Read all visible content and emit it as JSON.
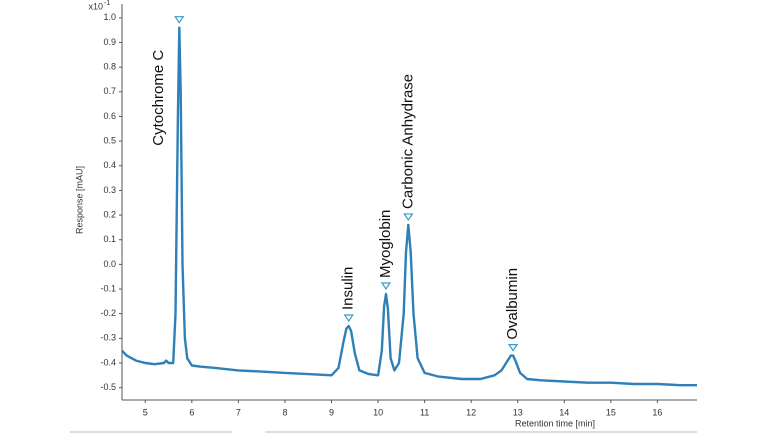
{
  "chart_data": {
    "type": "line",
    "y_axis_label": "Response [mAU]",
    "x_axis_label": "Retention time [min]",
    "y_multiplier": {
      "base": "x10",
      "exponent": "-1"
    },
    "xlim": [
      4.5,
      16.85
    ],
    "ylim": [
      -0.55,
      1.05
    ],
    "xticks": [
      5,
      6,
      7,
      8,
      9,
      10,
      11,
      12,
      13,
      14,
      15,
      16
    ],
    "yticks": [
      {
        "value": 1,
        "label": "1.0"
      },
      0.9,
      0.8,
      0.7,
      0.6,
      0.5,
      0.4,
      0.3,
      0.2,
      0.1,
      {
        "value": 0,
        "label": "0.0"
      },
      -0.1,
      -0.2,
      -0.3,
      -0.4,
      -0.5
    ],
    "x": [
      4.5,
      4.6,
      4.8,
      5.0,
      5.2,
      5.4,
      5.45,
      5.5,
      5.6,
      5.65,
      5.7,
      5.73,
      5.76,
      5.8,
      5.85,
      5.9,
      6.0,
      6.2,
      6.5,
      7.0,
      7.5,
      8.0,
      8.5,
      9.0,
      9.15,
      9.25,
      9.32,
      9.37,
      9.42,
      9.5,
      9.6,
      9.8,
      10.0,
      10.08,
      10.13,
      10.17,
      10.21,
      10.27,
      10.35,
      10.45,
      10.55,
      10.6,
      10.65,
      10.7,
      10.76,
      10.85,
      11.0,
      11.3,
      11.8,
      12.2,
      12.5,
      12.65,
      12.75,
      12.85,
      12.9,
      12.95,
      13.05,
      13.2,
      13.5,
      14.0,
      14.5,
      15.0,
      15.5,
      16.0,
      16.5,
      16.85
    ],
    "series": [
      {
        "color": "#2f7fb8",
        "values": [
          -0.35,
          -0.37,
          -0.39,
          -0.4,
          -0.405,
          -0.4,
          -0.39,
          -0.4,
          -0.4,
          -0.2,
          0.6,
          0.96,
          0.7,
          0.0,
          -0.3,
          -0.38,
          -0.41,
          -0.415,
          -0.42,
          -0.43,
          -0.435,
          -0.44,
          -0.445,
          -0.45,
          -0.42,
          -0.32,
          -0.26,
          -0.25,
          -0.27,
          -0.36,
          -0.43,
          -0.445,
          -0.45,
          -0.35,
          -0.17,
          -0.12,
          -0.18,
          -0.38,
          -0.43,
          -0.4,
          -0.2,
          0.05,
          0.16,
          0.05,
          -0.2,
          -0.38,
          -0.44,
          -0.455,
          -0.465,
          -0.465,
          -0.45,
          -0.43,
          -0.4,
          -0.37,
          -0.37,
          -0.39,
          -0.44,
          -0.465,
          -0.47,
          -0.475,
          -0.48,
          -0.48,
          -0.485,
          -0.485,
          -0.49,
          -0.49
        ]
      }
    ],
    "annotations": [
      {
        "text": "Cytochrome C",
        "x": 5.73,
        "y": 0.96
      },
      {
        "text": "Insulin",
        "x": 9.37,
        "y": -0.25
      },
      {
        "text": "Myoglobin",
        "x": 10.17,
        "y": -0.12
      },
      {
        "text": "Carbonic Anhydrase",
        "x": 10.65,
        "y": 0.16
      },
      {
        "text": "Ovalbumin",
        "x": 12.9,
        "y": -0.37
      }
    ]
  }
}
